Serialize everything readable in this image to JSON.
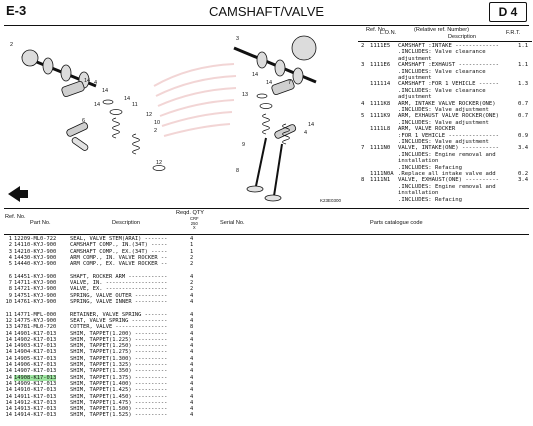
{
  "header": {
    "code": "E-3",
    "title": "CAMSHAFT/VALVE",
    "tag": "D 4"
  },
  "ref_table": {
    "col_ref": "Ref. No.",
    "col_lon": "L.O.N.",
    "col_rel": "(Relative ref. Number)",
    "col_desc": "Description",
    "col_frt": "F.R.T.",
    "rows": [
      {
        "ref": "2",
        "lon": "1111E5",
        "desc": "CAMSHAFT :INTAKE -------------",
        "frt": "1.1"
      },
      {
        "ref": "",
        "lon": "",
        "desc": ".INCLUDES: Valve clearance",
        "frt": ""
      },
      {
        "ref": "",
        "lon": "",
        "desc": "adjustment",
        "frt": ""
      },
      {
        "ref": "3",
        "lon": "1111E6",
        "desc": "CAMSHAFT :EXHAUST ------------",
        "frt": "1.1"
      },
      {
        "ref": "",
        "lon": "",
        "desc": ".INCLUDES: Valve clearance",
        "frt": ""
      },
      {
        "ref": "",
        "lon": "",
        "desc": "adjustment",
        "frt": ""
      },
      {
        "ref": "",
        "lon": "111114",
        "desc": "CAMSHAFT :FOR 1 VEHICLE ------",
        "frt": "1.3"
      },
      {
        "ref": "",
        "lon": "",
        "desc": ".INCLUDES: Valve clearance",
        "frt": ""
      },
      {
        "ref": "",
        "lon": "",
        "desc": "adjustment",
        "frt": ""
      },
      {
        "ref": "4",
        "lon": "1111K8",
        "desc": "ARM, INTAKE VALVE ROCKER(ONE)",
        "frt": "0.7"
      },
      {
        "ref": "",
        "lon": "",
        "desc": ".INCLUDES: Valve adjustment",
        "frt": ""
      },
      {
        "ref": "5",
        "lon": "1111K9",
        "desc": "ARM, EXHAUST VALVE ROCKER(ONE)",
        "frt": "0.7"
      },
      {
        "ref": "",
        "lon": "",
        "desc": ".INCLUDES: Valve adjustment",
        "frt": ""
      },
      {
        "ref": "",
        "lon": "1111L8",
        "desc": "ARM, VALVE ROCKER",
        "frt": ""
      },
      {
        "ref": "",
        "lon": "",
        "desc": ":FOR 1 VEHICLE ---------------",
        "frt": "0.9"
      },
      {
        "ref": "",
        "lon": "",
        "desc": ".INCLUDES: Valve adjustment",
        "frt": ""
      },
      {
        "ref": "7",
        "lon": "1111N0",
        "desc": "VALVE, INTAKE(ONE) -----------",
        "frt": "3.4"
      },
      {
        "ref": "",
        "lon": "",
        "desc": ".INCLUDES: Engine removal and",
        "frt": ""
      },
      {
        "ref": "",
        "lon": "",
        "desc": "installation",
        "frt": ""
      },
      {
        "ref": "",
        "lon": "",
        "desc": ".INCLUDES: Refacing",
        "frt": ""
      },
      {
        "ref": "",
        "lon": "1111N0A",
        "desc": ".Replace all intake valve add",
        "frt": "0.2"
      },
      {
        "ref": "8",
        "lon": "1111N1",
        "desc": "VALVE, EXHAUST(ONE) ----------",
        "frt": "3.4"
      },
      {
        "ref": "",
        "lon": "",
        "desc": ".INCLUDES: Engine removal and",
        "frt": ""
      },
      {
        "ref": "",
        "lon": "",
        "desc": "installation",
        "frt": ""
      },
      {
        "ref": "",
        "lon": "",
        "desc": ".INCLUDES: Refacing",
        "frt": ""
      }
    ]
  },
  "diagram": {
    "callouts": [
      "1",
      "2",
      "3",
      "4",
      "5",
      "6",
      "7",
      "8",
      "9",
      "10",
      "11",
      "12",
      "13",
      "14",
      "15",
      "16"
    ],
    "code": "K23E0300"
  },
  "parts_table": {
    "col_ref": "Ref. No.",
    "col_part": "Part No.",
    "col_desc": "Description",
    "col_qty": "Reqd. QTY",
    "col_models": [
      "CRF",
      "250",
      "X"
    ],
    "col_serial": "Serial No.",
    "col_code": "Parts catalogue code",
    "rows": [
      {
        "ref": "1",
        "part": "12209-ML0-722",
        "desc": "SEAL, VALVE STEM(ARAI) -------",
        "qty": "4",
        "hl": false
      },
      {
        "ref": "2",
        "part": "14110-KYJ-900",
        "desc": "CAMSHAFT COMP., IN.(34T) -----",
        "qty": "1",
        "hl": false
      },
      {
        "ref": "3",
        "part": "14210-KYJ-900",
        "desc": "CAMSHAFT COMP., EX.(34T) -----",
        "qty": "1",
        "hl": false
      },
      {
        "ref": "4",
        "part": "14430-KYJ-900",
        "desc": "ARM COMP., IN. VALVE ROCKER --",
        "qty": "2",
        "hl": false
      },
      {
        "ref": "5",
        "part": "14440-KYJ-900",
        "desc": "ARM COMP., EX. VALVE ROCKER --",
        "qty": "2",
        "hl": false
      },
      {
        "ref": "",
        "part": "",
        "desc": "",
        "qty": "",
        "hl": false
      },
      {
        "ref": "6",
        "part": "14451-KYJ-900",
        "desc": "SHAFT, ROCKER ARM ------------",
        "qty": "4",
        "hl": false
      },
      {
        "ref": "7",
        "part": "14711-KYJ-900",
        "desc": "VALVE, IN. -------------------",
        "qty": "2",
        "hl": false
      },
      {
        "ref": "8",
        "part": "14721-KYJ-900",
        "desc": "VALVE, EX. -------------------",
        "qty": "2",
        "hl": false
      },
      {
        "ref": "9",
        "part": "14751-KYJ-900",
        "desc": "SPRING, VALVE OUTER ----------",
        "qty": "4",
        "hl": false
      },
      {
        "ref": "10",
        "part": "14761-KYJ-900",
        "desc": "SPRING, VALVE INNER ----------",
        "qty": "4",
        "hl": false
      },
      {
        "ref": "",
        "part": "",
        "desc": "",
        "qty": "",
        "hl": false
      },
      {
        "ref": "11",
        "part": "14771-MFL-000",
        "desc": "RETAINER, VALVE SPRING -------",
        "qty": "4",
        "hl": false
      },
      {
        "ref": "12",
        "part": "14775-KYJ-900",
        "desc": "SEAT, VALVE SPRING -----------",
        "qty": "4",
        "hl": false
      },
      {
        "ref": "13",
        "part": "14781-ML0-720",
        "desc": "COTTER, VALVE ----------------",
        "qty": "8",
        "hl": false
      },
      {
        "ref": "14",
        "part": "14901-K17-013",
        "desc": "SHIM, TAPPET(1.200) ----------",
        "qty": "4",
        "hl": false
      },
      {
        "ref": "14",
        "part": "14902-K17-013",
        "desc": "SHIM, TAPPET(1.225) ----------",
        "qty": "4",
        "hl": false
      },
      {
        "ref": "14",
        "part": "14903-K17-013",
        "desc": "SHIM, TAPPET(1.250) ----------",
        "qty": "4",
        "hl": false
      },
      {
        "ref": "14",
        "part": "14904-K17-013",
        "desc": "SHIM, TAPPET(1.275) ----------",
        "qty": "4",
        "hl": false
      },
      {
        "ref": "14",
        "part": "14905-K17-013",
        "desc": "SHIM, TAPPET(1.300) ----------",
        "qty": "4",
        "hl": false
      },
      {
        "ref": "14",
        "part": "14906-K17-013",
        "desc": "SHIM, TAPPET(1.325) ----------",
        "qty": "4",
        "hl": false
      },
      {
        "ref": "14",
        "part": "14907-K17-013",
        "desc": "SHIM, TAPPET(1.350) ----------",
        "qty": "4",
        "hl": false
      },
      {
        "ref": "14",
        "part": "14908-K17-013",
        "desc": "SHIM, TAPPET(1.375) ----------",
        "qty": "4",
        "hl": true
      },
      {
        "ref": "14",
        "part": "14909-K17-013",
        "desc": "SHIM, TAPPET(1.400) ----------",
        "qty": "4",
        "hl": false
      },
      {
        "ref": "14",
        "part": "14910-K17-013",
        "desc": "SHIM, TAPPET(1.425) ----------",
        "qty": "4",
        "hl": false
      },
      {
        "ref": "14",
        "part": "14911-K17-013",
        "desc": "SHIM, TAPPET(1.450) ----------",
        "qty": "4",
        "hl": false
      },
      {
        "ref": "14",
        "part": "14912-K17-013",
        "desc": "SHIM, TAPPET(1.475) ----------",
        "qty": "4",
        "hl": false
      },
      {
        "ref": "14",
        "part": "14913-K17-013",
        "desc": "SHIM, TAPPET(1.500) ----------",
        "qty": "4",
        "hl": false
      },
      {
        "ref": "14",
        "part": "14914-K17-013",
        "desc": "SHIM, TAPPET(1.525) ----------",
        "qty": "4",
        "hl": false
      }
    ]
  },
  "colors": {
    "highlight": "#9ee6a0",
    "ink": "#111111",
    "watermark": "#e9b3b3"
  }
}
